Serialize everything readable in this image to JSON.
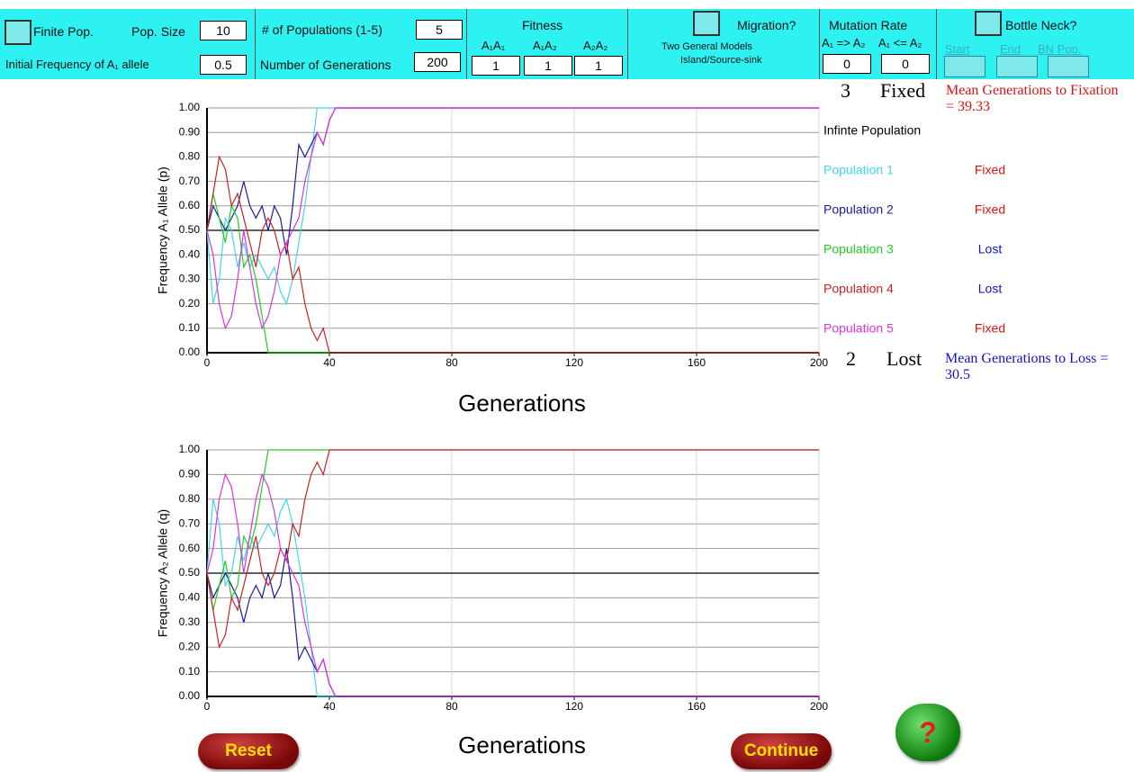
{
  "controls": {
    "finite_pop": "Finite Pop.",
    "pop_size_label": "Pop. Size",
    "pop_size": 10,
    "initial_freq_label": "Initial  Frequency  of A₁ allele",
    "initial_freq": 0.5,
    "num_pops_label": "# of Populations (1-5)",
    "num_pops": 5,
    "num_gens_label": "Number of Generations",
    "num_gens": 200,
    "fitness_label": "Fitness",
    "fitness_names": [
      "A₁A₁",
      "A₁A₂",
      "A₂A₂"
    ],
    "fitness_values": [
      1,
      1,
      1
    ],
    "migration_label": "Migration?",
    "migration_models": "Two General Models",
    "migration_types": "Island/Source-sink",
    "mutation_label": "Mutation Rate",
    "mutation_names": [
      "A₁ => A₂",
      "A₁ <= A₂"
    ],
    "mutation_values": [
      0,
      0
    ],
    "bottleneck_label": "Bottle Neck?",
    "bottleneck_fields": [
      "Start",
      "End",
      "BN Pop."
    ]
  },
  "summary": {
    "fixed_count": 3,
    "fixed_label": "Fixed",
    "fixation_text": "Mean Generations to Fixation = 39.33",
    "lost_count": 2,
    "lost_label": "Lost",
    "loss_text": "Mean Generations to Loss = 30.5"
  },
  "buttons": {
    "reset": "Reset",
    "continue": "Continue",
    "help": "?"
  },
  "chart_data": [
    {
      "type": "line",
      "ylabel": "Frequency A₁ Allele (p)",
      "xlabel": "Generations",
      "x": [
        0,
        2,
        4,
        6,
        8,
        10,
        12,
        14,
        16,
        18,
        20,
        22,
        24,
        26,
        28,
        30,
        32,
        34,
        36,
        38,
        40,
        42,
        44,
        200
      ],
      "xlim": [
        0,
        200
      ],
      "xticks": [
        0,
        40,
        80,
        120,
        160,
        200
      ],
      "ylim": [
        0,
        1
      ],
      "yticks": [
        {
          "value": 0,
          "label": "0.00"
        },
        {
          "value": 0.1,
          "label": "0.10"
        },
        {
          "value": 0.2,
          "label": "0.20"
        },
        {
          "value": 0.3,
          "label": "0.30"
        },
        {
          "value": 0.4,
          "label": "0.40"
        },
        {
          "value": 0.5,
          "label": "0.50"
        },
        {
          "value": 0.6,
          "label": "0.60"
        },
        {
          "value": 0.7,
          "label": "0.70"
        },
        {
          "value": 0.8,
          "label": "0.80"
        },
        {
          "value": 0.9,
          "label": "0.90"
        },
        {
          "value": 1,
          "label": "1.00"
        }
      ],
      "grid": true,
      "series": [
        {
          "name": "Infinte Population",
          "color": "#000000",
          "values": [
            0.5,
            0.5,
            0.5,
            0.5,
            0.5,
            0.5,
            0.5,
            0.5,
            0.5,
            0.5,
            0.5,
            0.5,
            0.5,
            0.5,
            0.5,
            0.5,
            0.5,
            0.5,
            0.5,
            0.5,
            0.5,
            0.5,
            0.5,
            0.5
          ]
        },
        {
          "name": "Population 1",
          "color": "#3fd8e8",
          "status": "Fixed",
          "status_color": "#dd1111",
          "values": [
            0.5,
            0.2,
            0.3,
            0.55,
            0.5,
            0.35,
            0.45,
            0.35,
            0.4,
            0.35,
            0.3,
            0.35,
            0.25,
            0.2,
            0.3,
            0.45,
            0.6,
            0.8,
            1,
            1,
            1,
            1,
            1,
            1
          ]
        },
        {
          "name": "Population 2",
          "color": "#1a1aa0",
          "status": "Fixed",
          "status_color": "#dd1111",
          "values": [
            0.5,
            0.6,
            0.55,
            0.5,
            0.55,
            0.6,
            0.7,
            0.6,
            0.55,
            0.6,
            0.5,
            0.6,
            0.55,
            0.4,
            0.6,
            0.85,
            0.8,
            0.85,
            0.9,
            0.85,
            0.95,
            1,
            1,
            1
          ]
        },
        {
          "name": "Population 3",
          "color": "#22cc22",
          "status": "Lost",
          "status_color": "#1111cc",
          "values": [
            0.5,
            0.65,
            0.55,
            0.45,
            0.6,
            0.55,
            0.35,
            0.4,
            0.3,
            0.15,
            0,
            0,
            0,
            0,
            0,
            0,
            0,
            0,
            0,
            0,
            0,
            0,
            0,
            0
          ]
        },
        {
          "name": "Population 4",
          "color": "#cc2222",
          "status": "Lost",
          "status_color": "#1111cc",
          "values": [
            0.5,
            0.65,
            0.8,
            0.75,
            0.6,
            0.65,
            0.55,
            0.45,
            0.35,
            0.5,
            0.55,
            0.5,
            0.4,
            0.45,
            0.3,
            0.35,
            0.2,
            0.1,
            0.05,
            0.1,
            0,
            0,
            0,
            0
          ]
        },
        {
          "name": "Population 5",
          "color": "#dd33dd",
          "status": "Fixed",
          "status_color": "#dd1111",
          "values": [
            0.5,
            0.4,
            0.2,
            0.1,
            0.15,
            0.3,
            0.5,
            0.35,
            0.2,
            0.1,
            0.15,
            0.25,
            0.4,
            0.45,
            0.5,
            0.55,
            0.7,
            0.8,
            0.9,
            0.85,
            0.95,
            1,
            1,
            1
          ]
        }
      ]
    },
    {
      "type": "line",
      "ylabel": "Frequency A₂ Allele (q)",
      "xlabel": "Generations",
      "x": [
        0,
        2,
        4,
        6,
        8,
        10,
        12,
        14,
        16,
        18,
        20,
        22,
        24,
        26,
        28,
        30,
        32,
        34,
        36,
        38,
        40,
        42,
        44,
        200
      ],
      "xlim": [
        0,
        200
      ],
      "xticks": [
        0,
        40,
        80,
        120,
        160,
        200
      ],
      "ylim": [
        0,
        1
      ],
      "yticks": [
        {
          "value": 0,
          "label": "0.00"
        },
        {
          "value": 0.1,
          "label": "0.10"
        },
        {
          "value": 0.2,
          "label": "0.20"
        },
        {
          "value": 0.3,
          "label": "0.30"
        },
        {
          "value": 0.4,
          "label": "0.40"
        },
        {
          "value": 0.5,
          "label": "0.50"
        },
        {
          "value": 0.6,
          "label": "0.60"
        },
        {
          "value": 0.7,
          "label": "0.70"
        },
        {
          "value": 0.8,
          "label": "0.80"
        },
        {
          "value": 0.9,
          "label": "0.90"
        },
        {
          "value": 1,
          "label": "1.00"
        }
      ],
      "grid": true,
      "series": [
        {
          "color": "#000000",
          "values": [
            0.5,
            0.5,
            0.5,
            0.5,
            0.5,
            0.5,
            0.5,
            0.5,
            0.5,
            0.5,
            0.5,
            0.5,
            0.5,
            0.5,
            0.5,
            0.5,
            0.5,
            0.5,
            0.5,
            0.5,
            0.5,
            0.5,
            0.5,
            0.5
          ]
        },
        {
          "color": "#3fd8e8",
          "values": [
            0.5,
            0.8,
            0.7,
            0.45,
            0.5,
            0.65,
            0.55,
            0.65,
            0.6,
            0.65,
            0.7,
            0.65,
            0.75,
            0.8,
            0.7,
            0.55,
            0.4,
            0.2,
            0,
            0,
            0,
            0,
            0,
            0
          ]
        },
        {
          "color": "#1a1aa0",
          "values": [
            0.5,
            0.4,
            0.45,
            0.5,
            0.45,
            0.4,
            0.3,
            0.4,
            0.45,
            0.4,
            0.5,
            0.4,
            0.45,
            0.6,
            0.4,
            0.15,
            0.2,
            0.15,
            0.1,
            0.15,
            0.05,
            0,
            0,
            0
          ]
        },
        {
          "color": "#22cc22",
          "values": [
            0.5,
            0.35,
            0.45,
            0.55,
            0.4,
            0.45,
            0.65,
            0.6,
            0.7,
            0.85,
            1,
            1,
            1,
            1,
            1,
            1,
            1,
            1,
            1,
            1,
            1,
            1,
            1,
            1
          ]
        },
        {
          "color": "#cc2222",
          "values": [
            0.5,
            0.35,
            0.2,
            0.25,
            0.4,
            0.35,
            0.45,
            0.55,
            0.65,
            0.5,
            0.45,
            0.5,
            0.6,
            0.55,
            0.7,
            0.65,
            0.8,
            0.9,
            0.95,
            0.9,
            1,
            1,
            1,
            1
          ]
        },
        {
          "color": "#dd33dd",
          "values": [
            0.5,
            0.6,
            0.8,
            0.9,
            0.85,
            0.7,
            0.5,
            0.65,
            0.8,
            0.9,
            0.85,
            0.75,
            0.6,
            0.55,
            0.5,
            0.45,
            0.3,
            0.2,
            0.1,
            0.15,
            0.05,
            0,
            0,
            0
          ]
        }
      ]
    }
  ]
}
